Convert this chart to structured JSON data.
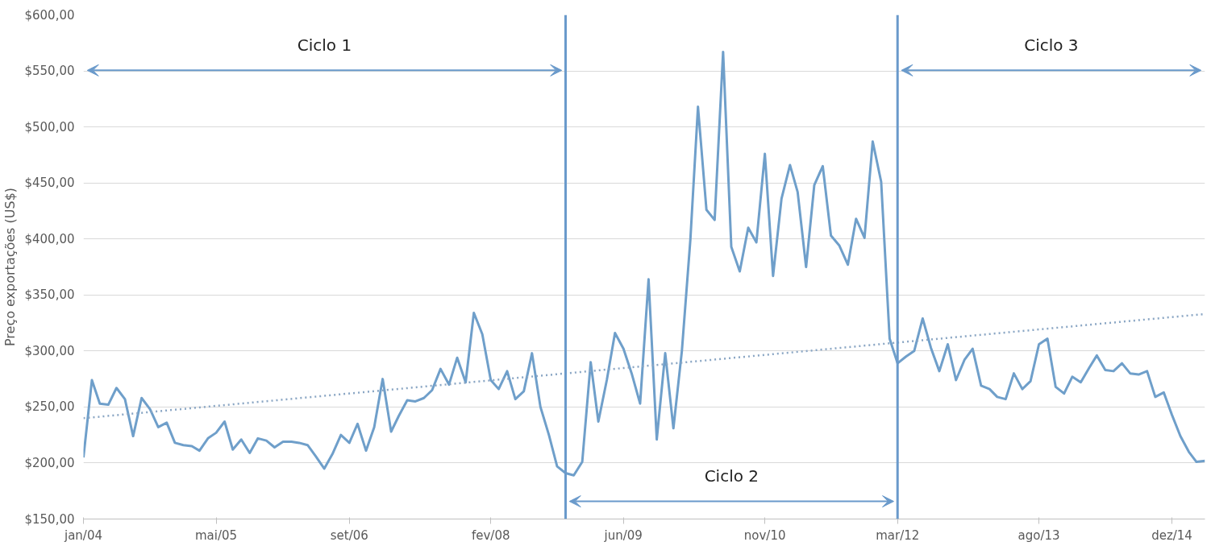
{
  "chart_data": {
    "type": "line",
    "ylabel": "Preço exportações (US$)",
    "xlim": [
      "2004-01",
      "2015-04"
    ],
    "ylim": [
      150,
      600
    ],
    "yticks": [
      {
        "value": 150,
        "label": "$150,00"
      },
      {
        "value": 200,
        "label": "$200,00"
      },
      {
        "value": 250,
        "label": "$250,00"
      },
      {
        "value": 300,
        "label": "$300,00"
      },
      {
        "value": 350,
        "label": "$350,00"
      },
      {
        "value": 400,
        "label": "$400,00"
      },
      {
        "value": 450,
        "label": "$450,00"
      },
      {
        "value": 500,
        "label": "$500,00"
      },
      {
        "value": 550,
        "label": "$550,00"
      },
      {
        "value": 600,
        "label": "$600,00"
      }
    ],
    "xticks": [
      {
        "value": "2004-01",
        "label": "jan/04"
      },
      {
        "value": "2005-05",
        "label": "mai/05"
      },
      {
        "value": "2006-09",
        "label": "set/06"
      },
      {
        "value": "2008-02",
        "label": "fev/08"
      },
      {
        "value": "2009-06",
        "label": "jun/09"
      },
      {
        "value": "2010-11",
        "label": "nov/10"
      },
      {
        "value": "2012-03",
        "label": "mar/12"
      },
      {
        "value": "2013-08",
        "label": "ago/13"
      },
      {
        "value": "2014-12",
        "label": "dez/14"
      }
    ],
    "grid": "y",
    "series": [
      {
        "color": "#6f9fca",
        "line_style": "solid",
        "x": [
          "2004-01",
          "2004-02",
          "2004-03",
          "2004-04",
          "2004-05",
          "2004-06",
          "2004-07",
          "2004-08",
          "2004-09",
          "2004-10",
          "2004-11",
          "2004-12",
          "2005-01",
          "2005-02",
          "2005-03",
          "2005-04",
          "2005-05",
          "2005-06",
          "2005-07",
          "2005-08",
          "2005-09",
          "2005-10",
          "2005-11",
          "2005-12",
          "2006-01",
          "2006-02",
          "2006-03",
          "2006-04",
          "2006-05",
          "2006-06",
          "2006-07",
          "2006-08",
          "2006-09",
          "2006-10",
          "2006-11",
          "2006-12",
          "2007-01",
          "2007-02",
          "2007-03",
          "2007-04",
          "2007-05",
          "2007-06",
          "2007-07",
          "2007-08",
          "2007-09",
          "2007-10",
          "2007-11",
          "2007-12",
          "2008-01",
          "2008-02",
          "2008-03",
          "2008-04",
          "2008-05",
          "2008-06",
          "2008-07",
          "2008-08",
          "2008-09",
          "2008-10",
          "2008-11",
          "2008-12",
          "2009-01",
          "2009-02",
          "2009-03",
          "2009-04",
          "2009-05",
          "2009-06",
          "2009-07",
          "2009-08",
          "2009-09",
          "2009-10",
          "2009-11",
          "2009-12",
          "2010-01",
          "2010-02",
          "2010-03",
          "2010-04",
          "2010-05",
          "2010-06",
          "2010-07",
          "2010-08",
          "2010-09",
          "2010-10",
          "2010-11",
          "2010-12",
          "2011-01",
          "2011-02",
          "2011-03",
          "2011-04",
          "2011-05",
          "2011-06",
          "2011-07",
          "2011-08",
          "2011-09",
          "2011-10",
          "2011-11",
          "2011-12",
          "2012-01",
          "2012-02",
          "2012-03",
          "2012-04",
          "2012-05",
          "2012-06",
          "2012-07",
          "2012-08",
          "2012-09",
          "2012-10",
          "2012-11",
          "2012-12",
          "2013-01",
          "2013-02",
          "2013-03",
          "2013-04",
          "2013-05",
          "2013-06",
          "2013-07",
          "2013-08",
          "2013-09",
          "2013-10",
          "2013-11",
          "2013-12",
          "2014-01",
          "2014-02",
          "2014-03",
          "2014-04",
          "2014-05",
          "2014-06",
          "2014-07",
          "2014-08",
          "2014-09",
          "2014-10",
          "2014-11",
          "2014-12",
          "2015-01",
          "2015-02",
          "2015-03",
          "2015-04"
        ],
        "values": [
          205,
          274,
          253,
          252,
          267,
          257,
          224,
          258,
          248,
          232,
          236,
          218,
          216,
          215,
          211,
          222,
          227,
          237,
          212,
          221,
          209,
          222,
          220,
          214,
          219,
          219,
          218,
          216,
          206,
          195,
          208,
          225,
          218,
          235,
          211,
          232,
          275,
          228,
          242,
          256,
          255,
          258,
          265,
          284,
          270,
          294,
          272,
          334,
          315,
          274,
          266,
          282,
          257,
          264,
          298,
          250,
          225,
          197,
          191,
          189,
          201,
          290,
          237,
          274,
          316,
          302,
          280,
          253,
          364,
          221,
          298,
          231,
          300,
          399,
          518,
          426,
          417,
          567,
          393,
          371,
          410,
          397,
          476,
          367,
          436,
          466,
          442,
          375,
          448,
          465,
          403,
          394,
          377,
          418,
          401,
          487,
          451,
          311,
          289,
          295,
          300,
          329,
          303,
          282,
          306,
          274,
          292,
          302,
          269,
          266,
          259,
          257,
          280,
          266,
          273,
          306,
          311,
          268,
          262,
          277,
          272,
          285,
          296,
          283,
          282,
          289,
          280,
          279,
          282,
          259,
          263,
          243,
          224,
          210,
          201,
          202
        ]
      },
      {
        "type": "line",
        "color": "#8aa6c4",
        "line_style": "dotted",
        "x": [
          "2004-01",
          "2015-04"
        ],
        "values": [
          240,
          333
        ]
      }
    ],
    "ref_lines": [
      {
        "axis": "x",
        "value": "2008-11",
        "label": null,
        "color": "#6a9acb"
      },
      {
        "axis": "x",
        "value": "2012-03",
        "label": null,
        "color": "#6a9acb"
      }
    ],
    "annotations": [
      "Ciclo 1",
      "Ciclo 2",
      "Ciclo 3"
    ]
  }
}
